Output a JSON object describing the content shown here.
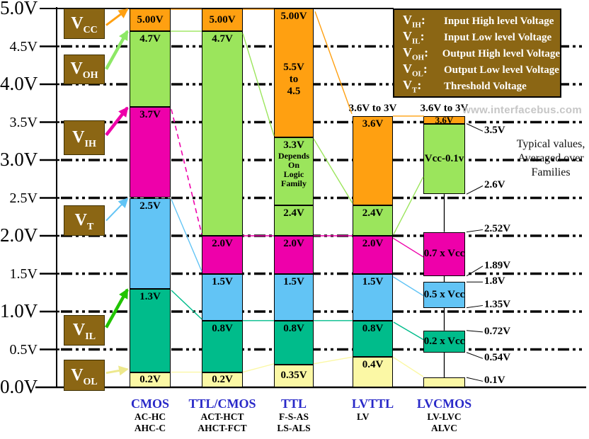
{
  "watermark": "www.interfacebus.com",
  "note": {
    "line1": "Typical values,",
    "line2": "Averaged over",
    "line3": "Families"
  },
  "legend": {
    "items": [
      {
        "base": "V",
        "sub": "IH",
        "desc": "Input High level Voltage"
      },
      {
        "base": "V",
        "sub": "IL",
        "desc": "Input Low level Voltage"
      },
      {
        "base": "V",
        "sub": "OH",
        "desc": "Output High level Voltage"
      },
      {
        "base": "V",
        "sub": "OL",
        "desc": "Output Low level Voltage"
      },
      {
        "base": "V",
        "sub": "T",
        "desc": "Threshold Voltage"
      }
    ]
  },
  "palette": {
    "orange": "#FFA011",
    "green": "#9BE55C",
    "magenta": "#EE00AA",
    "blue": "#62C4F5",
    "teal": "#00BC8B",
    "yellow": "#FBF8A5",
    "brown": "#8B6614",
    "title_blue": "#2929C8",
    "bright_green": "#21C400",
    "pale_yellow": "#EDE88C",
    "light_green_arrow": "#8DE866",
    "watermark_gray": "#C6C6C6"
  },
  "chart_data": {
    "type": "stacked-range-bar",
    "unit": "V",
    "grid": "dash-dot horizontal lines every 0.5V",
    "legend_position": "top-right",
    "y_axis": {
      "min": 0,
      "max": 5,
      "step": 0.5,
      "labels": [
        {
          "v": 5.0,
          "text": "5.0V",
          "major": true
        },
        {
          "v": 4.5,
          "text": "4.5V",
          "major": false
        },
        {
          "v": 4.0,
          "text": "4.0V",
          "major": true
        },
        {
          "v": 3.5,
          "text": "3.5V",
          "major": false
        },
        {
          "v": 3.0,
          "text": "3.0V",
          "major": true
        },
        {
          "v": 2.5,
          "text": "2.5V",
          "major": false
        },
        {
          "v": 2.0,
          "text": "2.0V",
          "major": true
        },
        {
          "v": 1.5,
          "text": "1.5V",
          "major": false
        },
        {
          "v": 1.0,
          "text": "1.0V",
          "major": true
        },
        {
          "v": 0.5,
          "text": "0.5V",
          "major": false
        },
        {
          "v": 0.0,
          "text": "0.0V",
          "major": true
        }
      ]
    },
    "level_markers": [
      {
        "base": "V",
        "sub": "CC",
        "arrow_color": "orange",
        "arrow_width": 3,
        "box_top": 5.0,
        "box_bottom": 4.6,
        "arrow_start": 4.78,
        "arrow_target": 4.99
      },
      {
        "base": "V",
        "sub": "OH",
        "arrow_color": "light_green_arrow",
        "arrow_width": 4.5,
        "box_top": 4.39,
        "box_bottom": 4.0,
        "arrow_start": 4.2,
        "arrow_target": 4.7
      },
      {
        "base": "V",
        "sub": "IH",
        "arrow_color": "magenta",
        "arrow_width": 4.5,
        "box_top": 3.52,
        "box_bottom": 3.07,
        "arrow_start": 3.33,
        "arrow_target": 3.69
      },
      {
        "base": "V",
        "sub": "T",
        "arrow_color": "blue",
        "arrow_width": 2,
        "box_top": 2.4,
        "box_bottom": 2.0,
        "arrow_start": 2.2,
        "arrow_target": 2.49
      },
      {
        "base": "V",
        "sub": "IL",
        "arrow_color": "bright_green",
        "arrow_width": 4.5,
        "box_top": 0.95,
        "box_bottom": 0.55,
        "arrow_start": 0.79,
        "arrow_target": 1.29
      },
      {
        "base": "V",
        "sub": "OL",
        "arrow_color": "pale_yellow",
        "arrow_width": 3,
        "box_top": 0.36,
        "box_bottom": -0.05,
        "arrow_start": 0.19,
        "arrow_target": 0.24
      }
    ],
    "families": [
      {
        "title": "CMOS",
        "subtitles": [
          "AC-HC",
          "AHC-C"
        ],
        "header": "",
        "segments": [
          {
            "level": "VCC",
            "label": "5.00V",
            "from": 5.0,
            "to": 4.7,
            "color": "orange"
          },
          {
            "level": "VOH",
            "label": "4.7V",
            "from": 4.7,
            "to": 3.7,
            "color": "green"
          },
          {
            "level": "VIH",
            "label": "3.7V",
            "from": 3.7,
            "to": 2.5,
            "color": "magenta"
          },
          {
            "level": "VT",
            "label": "2.5V",
            "from": 2.5,
            "to": 1.3,
            "color": "blue"
          },
          {
            "level": "VIL",
            "label": "1.3V",
            "from": 1.3,
            "to": 0.2,
            "color": "teal"
          },
          {
            "level": "VOL",
            "label": "0.2V",
            "from": 0.2,
            "to": 0.0,
            "color": "yellow"
          }
        ]
      },
      {
        "title": "TTL/CMOS",
        "subtitles": [
          "ACT-HCT",
          "AHCT-FCT"
        ],
        "header": "",
        "segments": [
          {
            "level": "VCC",
            "label": "5.00V",
            "from": 5.0,
            "to": 4.7,
            "color": "orange"
          },
          {
            "level": "VOH",
            "label": "4.7V",
            "from": 4.7,
            "to": 2.0,
            "color": "green"
          },
          {
            "level": "VIH",
            "label": "2.0V",
            "from": 2.0,
            "to": 1.5,
            "color": "magenta"
          },
          {
            "level": "VT",
            "label": "1.5V",
            "from": 1.5,
            "to": 0.88,
            "color": "blue"
          },
          {
            "level": "VIL",
            "label": "0.8V",
            "from": 0.88,
            "to": 0.2,
            "color": "teal"
          },
          {
            "level": "VOL",
            "label": "0.2V",
            "from": 0.2,
            "to": 0.0,
            "color": "yellow"
          }
        ]
      },
      {
        "title": "TTL",
        "subtitles": [
          "F-S-AS",
          "LS-ALS"
        ],
        "header": "",
        "segments": [
          {
            "level": "VCC",
            "label": "5.00V",
            "sublabel": [
              "5.5V",
              "to",
              "4.5"
            ],
            "sublabel_style": "big",
            "from": 5.0,
            "to": 3.3,
            "color": "orange"
          },
          {
            "level": "VOH",
            "label": "3.3V",
            "sublabel": [
              "Depends",
              "On",
              "Logic",
              "Family"
            ],
            "sublabel_style": "small",
            "from": 3.3,
            "to": 2.4,
            "color": "green"
          },
          {
            "level": "VOH_min",
            "label": "2.4V",
            "from": 2.4,
            "to": 2.0,
            "color": "green"
          },
          {
            "level": "VIH",
            "label": "2.0V",
            "from": 2.0,
            "to": 1.5,
            "color": "magenta"
          },
          {
            "level": "VT",
            "label": "1.5V",
            "from": 1.5,
            "to": 0.88,
            "color": "blue"
          },
          {
            "level": "VIL",
            "label": "0.8V",
            "from": 0.88,
            "to": 0.3,
            "color": "teal"
          },
          {
            "level": "VOL",
            "label": "0.35V",
            "from": 0.3,
            "to": 0.0,
            "color": "yellow"
          }
        ]
      },
      {
        "title": "LVTTL",
        "subtitles": [
          "LV"
        ],
        "subtitle_align": "left",
        "header": "3.6V to 3V",
        "segments": [
          {
            "level": "VCC",
            "label": "3.6V",
            "from": 3.58,
            "to": 2.4,
            "color": "orange"
          },
          {
            "level": "VOH",
            "label": "2.4V",
            "from": 2.4,
            "to": 2.0,
            "color": "green"
          },
          {
            "level": "VIH",
            "label": "2.0V",
            "from": 2.0,
            "to": 1.5,
            "color": "magenta"
          },
          {
            "level": "VT",
            "label": "1.5V",
            "from": 1.5,
            "to": 0.88,
            "color": "blue"
          },
          {
            "level": "VIL",
            "label": "0.8V",
            "from": 0.88,
            "to": 0.4,
            "color": "teal"
          },
          {
            "level": "VOL",
            "label": "0.4V",
            "from": 0.4,
            "to": 0.0,
            "color": "yellow"
          }
        ]
      },
      {
        "title": "LVCMOS",
        "subtitles": [
          "LV-LVC",
          "ALVC"
        ],
        "header": "3.6V to 3V",
        "connect_segments": true,
        "segments": [
          {
            "level": "VCC",
            "label": "3.6V",
            "from": 3.58,
            "to": 3.48,
            "color": "orange",
            "small": true,
            "center": true
          },
          {
            "level": "VOH",
            "label": "Vcc-0.1v",
            "from": 3.48,
            "to": 2.55,
            "color": "green",
            "center": true
          },
          {
            "level": "VIH",
            "label": "0.7 x Vcc",
            "from": 2.05,
            "to": 1.47,
            "color": "magenta",
            "center": true
          },
          {
            "level": "VT",
            "label": "0.5 x Vcc",
            "from": 1.39,
            "to": 1.05,
            "color": "blue",
            "center": true
          },
          {
            "level": "VIL",
            "label": "0.2 x Vcc",
            "from": 0.75,
            "to": 0.46,
            "color": "teal",
            "center": true
          },
          {
            "level": "VOL",
            "label": "",
            "from": 0.13,
            "to": 0.0,
            "color": "yellow"
          }
        ]
      }
    ],
    "right_annotations": [
      {
        "text": "3.5V",
        "at": 3.38,
        "point": 3.48
      },
      {
        "text": "2.6V",
        "at": 2.66,
        "point": 2.55
      },
      {
        "text": "2.52V",
        "at": 2.08,
        "point": 2.05
      },
      {
        "text": "1.89V",
        "at": 1.6,
        "point": 1.47
      },
      {
        "text": "1.8V",
        "at": 1.39,
        "point": 1.39
      },
      {
        "text": "1.35V",
        "at": 1.08,
        "point": 1.05
      },
      {
        "text": "0.72V",
        "at": 0.38,
        "point": 0.46
      },
      {
        "text": "0.54V",
        "at": 0.38,
        "point": 0.46
      },
      {
        "text": "0.1V",
        "at": 0.08,
        "point": 0.13
      }
    ]
  }
}
